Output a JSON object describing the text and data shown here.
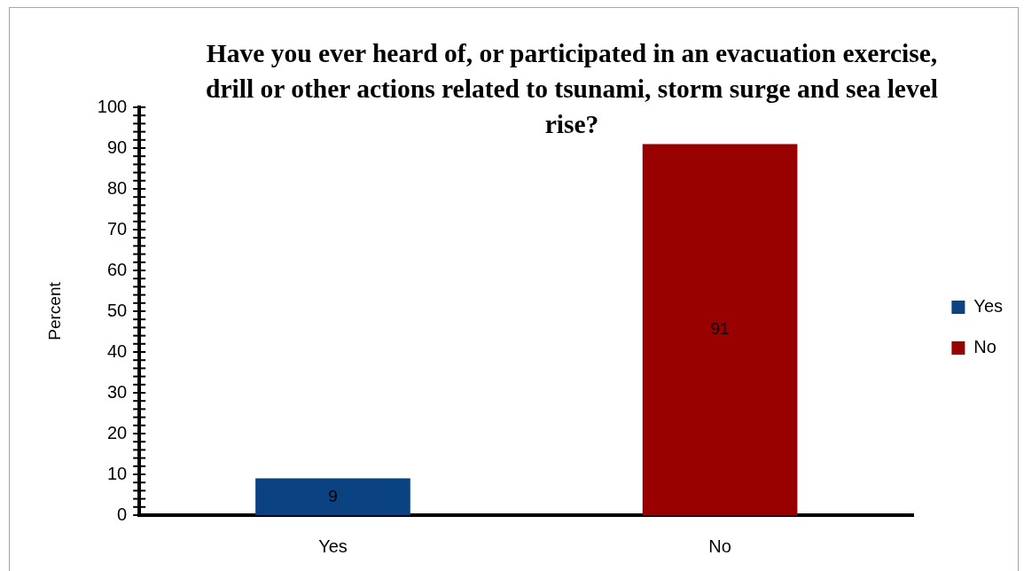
{
  "chart_data": {
    "type": "bar",
    "title": "Have you ever heard of, or participated in an evacuation exercise, drill or other actions related to tsunami, storm surge and sea level rise?",
    "categories": [
      "Yes",
      "No"
    ],
    "series": [
      {
        "name": "Yes",
        "color": "#0a4282",
        "values": [
          9,
          null
        ]
      },
      {
        "name": "No",
        "color": "#990000",
        "values": [
          null,
          91
        ]
      }
    ],
    "ylabel": "Percent",
    "ylim": [
      0,
      100
    ],
    "yticks": [
      0,
      {
        "value": 2,
        "label": null
      },
      {
        "value": 4,
        "label": null
      },
      {
        "value": 6,
        "label": null
      },
      {
        "value": 8,
        "label": null
      },
      10,
      {
        "value": 12,
        "label": null
      },
      {
        "value": 14,
        "label": null
      },
      {
        "value": 16,
        "label": null
      },
      {
        "value": 18,
        "label": null
      },
      20,
      {
        "value": 22,
        "label": null
      },
      {
        "value": 24,
        "label": null
      },
      {
        "value": 26,
        "label": null
      },
      {
        "value": 28,
        "label": null
      },
      30,
      {
        "value": 32,
        "label": null
      },
      {
        "value": 34,
        "label": null
      },
      {
        "value": 36,
        "label": null
      },
      {
        "value": 38,
        "label": null
      },
      40,
      {
        "value": 42,
        "label": null
      },
      {
        "value": 44,
        "label": null
      },
      {
        "value": 46,
        "label": null
      },
      {
        "value": 48,
        "label": null
      },
      50,
      {
        "value": 52,
        "label": null
      },
      {
        "value": 54,
        "label": null
      },
      {
        "value": 56,
        "label": null
      },
      {
        "value": 58,
        "label": null
      },
      60,
      {
        "value": 62,
        "label": null
      },
      {
        "value": 64,
        "label": null
      },
      {
        "value": 66,
        "label": null
      },
      {
        "value": 68,
        "label": null
      },
      70,
      {
        "value": 72,
        "label": null
      },
      {
        "value": 74,
        "label": null
      },
      {
        "value": 76,
        "label": null
      },
      {
        "value": 78,
        "label": null
      },
      80,
      {
        "value": 82,
        "label": null
      },
      {
        "value": 84,
        "label": null
      },
      {
        "value": 86,
        "label": null
      },
      {
        "value": 88,
        "label": null
      },
      90,
      {
        "value": 92,
        "label": null
      },
      {
        "value": 94,
        "label": null
      },
      {
        "value": 96,
        "label": null
      },
      {
        "value": 98,
        "label": null
      },
      100
    ],
    "legend": "right",
    "data_labels": true
  }
}
